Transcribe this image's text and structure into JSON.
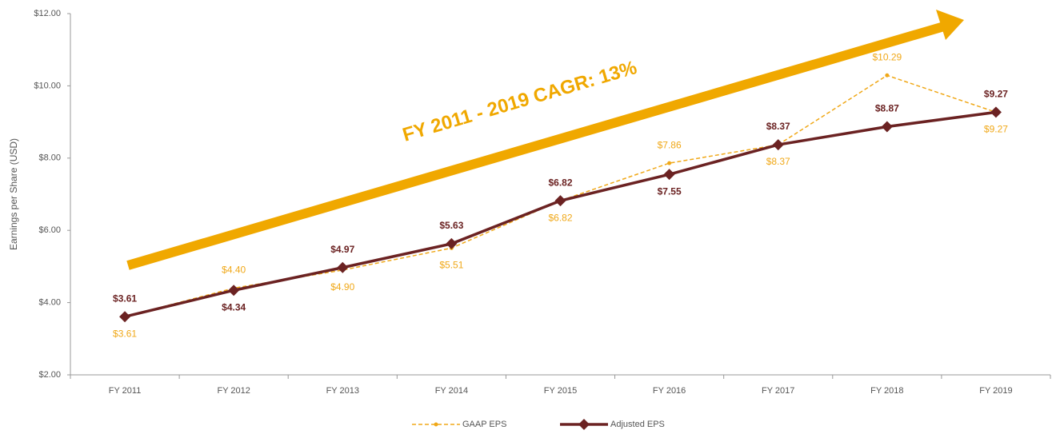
{
  "chart_data": {
    "type": "line",
    "annotation": "FY 2011 - 2019 CAGR: 13%",
    "ylabel": "Earnings per Share (USD)",
    "categories": [
      "FY 2011",
      "FY 2012",
      "FY 2013",
      "FY 2014",
      "FY 2015",
      "FY 2016",
      "FY 2017",
      "FY 2018",
      "FY 2019"
    ],
    "series": [
      {
        "name": "GAAP EPS",
        "color": "#f0a818",
        "dashed": true,
        "values": [
          3.61,
          4.4,
          4.9,
          5.51,
          6.82,
          7.86,
          8.37,
          10.29,
          9.27
        ],
        "value_labels": [
          "$3.61",
          "$4.40",
          "$4.90",
          "$5.51",
          "$6.82",
          "$7.86",
          "$8.37",
          "$10.29",
          "$9.27"
        ]
      },
      {
        "name": "Adjusted EPS",
        "color": "#6b2222",
        "dashed": false,
        "values": [
          3.61,
          4.34,
          4.97,
          5.63,
          6.82,
          7.55,
          8.37,
          8.87,
          9.27
        ],
        "value_labels": [
          "$3.61",
          "$4.34",
          "$4.97",
          "$5.63",
          "$6.82",
          "$7.55",
          "$8.37",
          "$8.87",
          "$9.27"
        ]
      }
    ],
    "ylim": [
      2,
      12
    ],
    "yticks": [
      {
        "value": 2,
        "label": "$2.00"
      },
      {
        "value": 4,
        "label": "$4.00"
      },
      {
        "value": 6,
        "label": "$6.00"
      },
      {
        "value": 8,
        "label": "$8.00"
      },
      {
        "value": 10,
        "label": "$10.00"
      },
      {
        "value": 12,
        "label": "$12.00"
      }
    ],
    "grid": false,
    "legend": "bottom"
  }
}
